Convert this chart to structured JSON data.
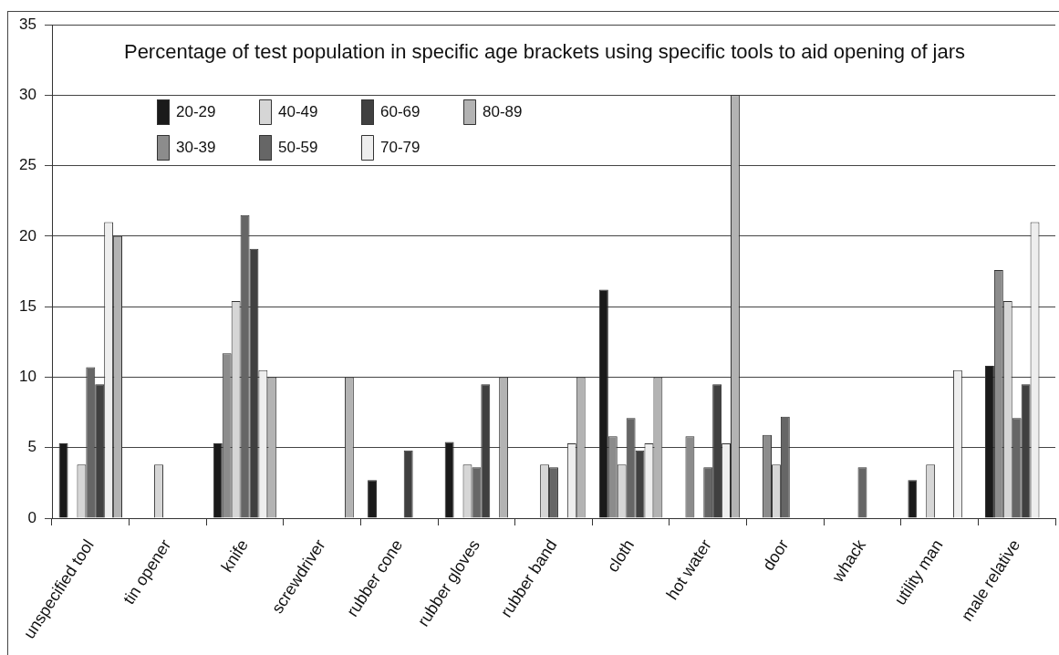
{
  "chart_data": {
    "type": "bar",
    "title": "Percentage of test population in specific age brackets using specific tools to aid opening of jars",
    "categories": [
      "unspecified tool",
      "tin opener",
      "knife",
      "screwdriver",
      "rubber cone",
      "rubber gloves",
      "rubber band",
      "cloth",
      "hot water",
      "door",
      "whack",
      "utility man",
      "male relative"
    ],
    "series": [
      {
        "name": "20-29",
        "color": "#1a1a1a",
        "values": [
          5.3,
          0,
          5.3,
          0,
          2.7,
          5.4,
          0,
          16.2,
          0,
          0,
          0,
          2.7,
          10.8
        ]
      },
      {
        "name": "30-39",
        "color": "#8c8c8c",
        "values": [
          0,
          0,
          11.7,
          0,
          0,
          0,
          0,
          5.8,
          5.8,
          5.9,
          0,
          0,
          17.6
        ]
      },
      {
        "name": "40-49",
        "color": "#d6d6d6",
        "values": [
          3.8,
          3.8,
          15.4,
          0,
          0,
          3.8,
          3.8,
          3.8,
          0,
          3.8,
          0,
          3.8,
          15.4
        ]
      },
      {
        "name": "50-59",
        "color": "#666666",
        "values": [
          10.7,
          0,
          21.5,
          0,
          0,
          3.6,
          3.6,
          7.1,
          3.6,
          7.2,
          3.6,
          0,
          7.1
        ]
      },
      {
        "name": "60-69",
        "color": "#404040",
        "values": [
          9.5,
          0,
          19.1,
          0,
          4.8,
          9.5,
          0,
          4.8,
          9.5,
          0,
          0,
          0,
          9.5
        ]
      },
      {
        "name": "70-79",
        "color": "#eeeeee",
        "values": [
          21,
          0,
          10.5,
          0,
          0,
          0,
          5.3,
          5.3,
          5.3,
          0,
          0,
          10.5,
          21
        ]
      },
      {
        "name": "80-89",
        "color": "#b3b3b3",
        "values": [
          20,
          0,
          10,
          10,
          0,
          10,
          10,
          10,
          30,
          0,
          0,
          0,
          0
        ]
      }
    ],
    "ylim": [
      0,
      35
    ],
    "yticks": [
      0,
      5,
      10,
      15,
      20,
      25,
      30,
      35
    ],
    "grid": "y",
    "legend": "top left"
  }
}
